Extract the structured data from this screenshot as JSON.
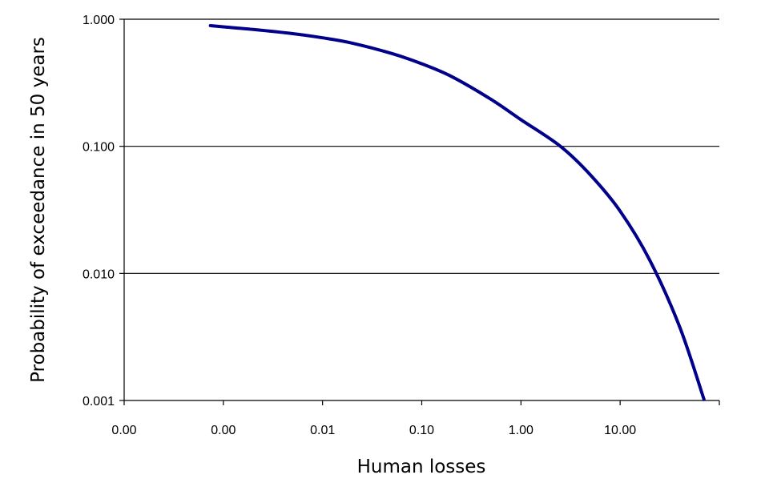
{
  "chart_data": {
    "type": "line",
    "title": "",
    "xlabel": "Human losses",
    "ylabel": "Probability of exceedance in 50 years",
    "x_scale": "log",
    "y_scale": "log",
    "xlim": [
      0.0001,
      100
    ],
    "ylim": [
      0.001,
      1
    ],
    "x_ticks": [
      {
        "value": 0.0001,
        "label": "0.00"
      },
      {
        "value": 0.001,
        "label": "0.00"
      },
      {
        "value": 0.01,
        "label": "0.01"
      },
      {
        "value": 0.1,
        "label": "0.10"
      },
      {
        "value": 1,
        "label": "1.00"
      },
      {
        "value": 10,
        "label": "10.00"
      }
    ],
    "y_ticks": [
      {
        "value": 1,
        "label": "1.000"
      },
      {
        "value": 0.1,
        "label": "0.100"
      },
      {
        "value": 0.01,
        "label": "0.010"
      },
      {
        "value": 0.001,
        "label": "0.001"
      }
    ],
    "grid": {
      "horizontal": true,
      "vertical": false
    },
    "legend": "none",
    "colors": {
      "series": "#00008b",
      "grid": "#000000",
      "axis": "#000000"
    },
    "series": [
      {
        "x": [
          0.00074,
          0.001,
          0.002,
          0.005,
          0.01,
          0.02,
          0.05,
          0.1,
          0.2,
          0.5,
          1,
          2.5,
          5,
          10,
          20,
          40,
          70
        ],
        "y": [
          0.89,
          0.871,
          0.831,
          0.77,
          0.714,
          0.648,
          0.537,
          0.446,
          0.354,
          0.234,
          0.162,
          0.1,
          0.0597,
          0.0309,
          0.0126,
          0.00376,
          0.00102
        ]
      }
    ]
  }
}
